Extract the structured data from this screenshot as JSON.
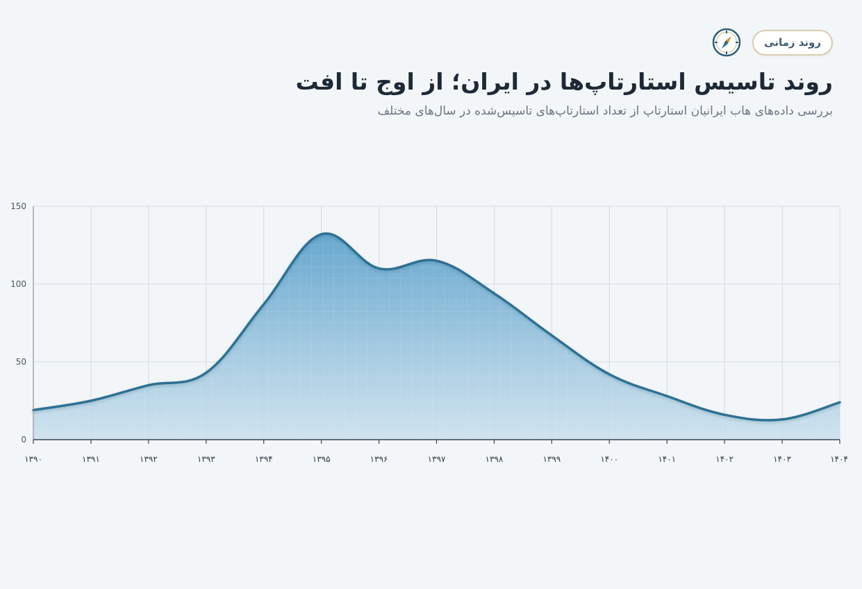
{
  "header": {
    "badge": "روند زمانی",
    "badge_icon": "compass-icon",
    "title": "روند تاسیس استارتاپ‌ها در ایران؛ از اوج تا افت",
    "subtitle": "بررسی داده‌های هاب ایرانیان استارتاپ از تعداد استارتاپ‌های تاسیس‌شده در سال‌های مختلف"
  },
  "chart_data": {
    "type": "area",
    "title": "",
    "xlabel": "",
    "ylabel": "",
    "categories": [
      "۱۳۹۰",
      "۱۳۹۱",
      "۱۳۹۲",
      "۱۳۹۳",
      "۱۳۹۴",
      "۱۳۹۵",
      "۱۳۹۶",
      "۱۳۹۷",
      "۱۳۹۸",
      "۱۳۹۹",
      "۱۴۰۰",
      "۱۴۰۱",
      "۱۴۰۲",
      "۱۴۰۳",
      "۱۴۰۴"
    ],
    "x_values": [
      1390,
      1391,
      1392,
      1393,
      1394,
      1395,
      1396,
      1397,
      1398,
      1399,
      1400,
      1401,
      1402,
      1403,
      1404
    ],
    "values": [
      19,
      25,
      35,
      43,
      87,
      132,
      110,
      115,
      94,
      67,
      42,
      28,
      16,
      13,
      24
    ],
    "ylim": [
      0,
      150
    ],
    "yticks": [
      "0",
      "50",
      "100",
      "150"
    ],
    "grid": true,
    "legend": "none",
    "colors": {
      "line": "#2f6f93",
      "fill_top": "#5fa3cc",
      "fill_bottom": "#c9dfec",
      "grid": "#d3d9e0"
    }
  }
}
